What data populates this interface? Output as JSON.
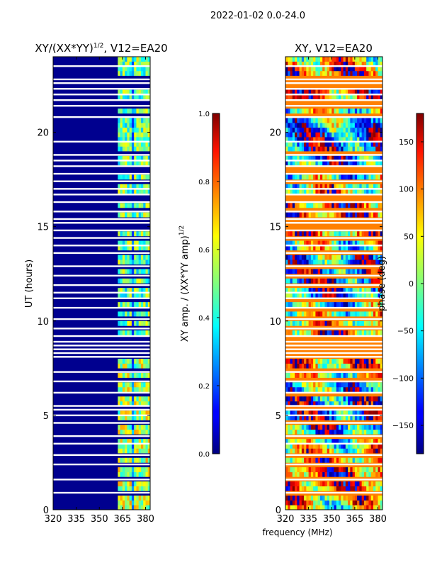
{
  "chart_data": {
    "suptitle": "2022-01-02 0.0-24.0",
    "shared_xlabel": "frequency (MHz)",
    "panels": [
      {
        "type": "heatmap",
        "title_prefix": "XY/(XX*YY)",
        "title_sup": "1/2",
        "title_suffix": ", V12=EA20",
        "xlim": [
          320,
          383
        ],
        "ylim": [
          0,
          24
        ],
        "xticks": [
          320,
          335,
          350,
          365,
          380
        ],
        "yticks": [
          0,
          5,
          10,
          15,
          20
        ],
        "ylabel": "UT (hours)",
        "colorbar": {
          "label_prefix": "XY amp. / (XX*YY amp)",
          "label_sup": "1/2",
          "range": [
            0.0,
            1.0
          ],
          "ticks": [
            "0.0",
            "0.2",
            "0.4",
            "0.6",
            "0.8",
            "1.0"
          ]
        }
      },
      {
        "type": "heatmap",
        "title": "XY, V12=EA20",
        "xlim": [
          320,
          383
        ],
        "ylim": [
          0,
          24
        ],
        "xticks": [
          320,
          335,
          350,
          365,
          380
        ],
        "yticks": [
          0,
          5,
          10,
          15,
          20
        ],
        "colorbar": {
          "label": "phase (deg)",
          "range": [
            -180,
            180
          ],
          "ticks": [
            "150",
            "100",
            "50",
            "0",
            "−50",
            "−100",
            "−150"
          ]
        }
      }
    ],
    "flagged_hours_approx": [
      0.9,
      1.6,
      2.4,
      2.9,
      3.5,
      3.9,
      4.6,
      5.0,
      5.3,
      5.5,
      6.2,
      6.8,
      7.3,
      8.1,
      8.3,
      8.5,
      8.7,
      8.9,
      9.2,
      9.6,
      10.1,
      10.7,
      11.2,
      11.5,
      11.9,
      12.4,
      12.9,
      13.6,
      14.0,
      14.4,
      14.8,
      15.2,
      15.4,
      15.8,
      16.3,
      16.7,
      17.0,
      17.4,
      17.8,
      18.2,
      18.5,
      18.8,
      19.5,
      20.8,
      21.4,
      21.7,
      22.0,
      22.3,
      22.6,
      22.8,
      23.5
    ]
  }
}
